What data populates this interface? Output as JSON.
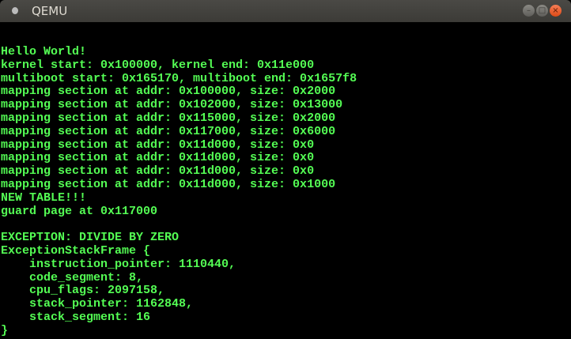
{
  "window": {
    "title": "QEMU",
    "minimize_icon": "minimize-icon",
    "maximize_icon": "maximize-icon",
    "close_icon": "close-icon"
  },
  "colors": {
    "text": "#54fe54",
    "background": "#000000",
    "close_button": "#e95420"
  },
  "console": {
    "lines": [
      "Hello World!",
      "kernel start: 0x100000, kernel end: 0x11e000",
      "multiboot start: 0x165170, multiboot end: 0x1657f8",
      "mapping section at addr: 0x100000, size: 0x2000",
      "mapping section at addr: 0x102000, size: 0x13000",
      "mapping section at addr: 0x115000, size: 0x2000",
      "mapping section at addr: 0x117000, size: 0x6000",
      "mapping section at addr: 0x11d000, size: 0x0",
      "mapping section at addr: 0x11d000, size: 0x0",
      "mapping section at addr: 0x11d000, size: 0x0",
      "mapping section at addr: 0x11d000, size: 0x1000",
      "NEW TABLE!!!",
      "guard page at 0x117000",
      "",
      "EXCEPTION: DIVIDE BY ZERO",
      "ExceptionStackFrame {",
      "    instruction_pointer: 1110440,",
      "    code_segment: 8,",
      "    cpu_flags: 2097158,",
      "    stack_pointer: 1162848,",
      "    stack_segment: 16",
      "}"
    ]
  }
}
